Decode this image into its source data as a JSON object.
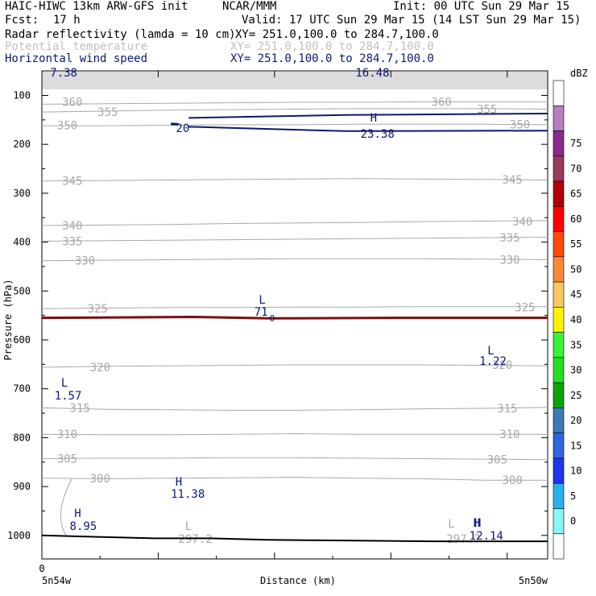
{
  "header": {
    "model": "HAIC-HIWC 13km ARW-GFS init",
    "org": "NCAR/MMM",
    "init": "Init: 00 UTC Sun 29 Mar 15",
    "fcst_label": "Fcst:",
    "fcst_value": "17 h",
    "valid": "Valid: 17 UTC Sun 29 Mar 15 (14 LST Sun 29 Mar 15)",
    "fields": [
      {
        "name": "Radar reflectivity (lamda = 10 cm)",
        "xy": "XY= 251.0,100.0 to 284.7,100.0",
        "color": "#000000"
      },
      {
        "name": "Potential temperature",
        "xy": "XY= 251.0,100.0 to 284.7,100.0",
        "color": "#c0c0c0"
      },
      {
        "name": "Horizontal wind speed",
        "xy": "XY= 251.0,100.0 to 284.7,100.0",
        "color": "#0a1a78"
      }
    ]
  },
  "colors": {
    "theta": "#a8a8a8",
    "wind": "#0a1a78",
    "wind_line": "#0c1a6e",
    "trop": "#7a0f0f",
    "terrain": "#000000",
    "axis": "#000000"
  },
  "chart_data": {
    "type": "cross-section",
    "ylabel": "Pressure (hPa)",
    "xlabel": "Distance (km)",
    "x_tick_labels": [
      "0"
    ],
    "x_end_labels": [
      "5n54w",
      "5n50w"
    ],
    "y_ticks": [
      100,
      200,
      300,
      400,
      500,
      600,
      700,
      800,
      900,
      1000
    ],
    "y_range": [
      50,
      1050
    ],
    "x_range": [
      0,
      1
    ],
    "theta_levels": [
      {
        "value": 300,
        "p": [
          883,
          884,
          883,
          882,
          881,
          883,
          884,
          887,
          887
        ]
      },
      {
        "value": 305,
        "p": [
          843,
          842,
          842,
          841,
          841,
          842,
          843,
          844,
          845
        ]
      },
      {
        "value": 310,
        "p": [
          793,
          794,
          794,
          793,
          792,
          793,
          793,
          793,
          793
        ]
      },
      {
        "value": 315,
        "p": [
          739,
          742,
          743,
          744,
          744,
          743,
          741,
          740,
          738
        ]
      },
      {
        "value": 320,
        "p": [
          656,
          654,
          653,
          652,
          651,
          651,
          651,
          652,
          653
        ]
      },
      {
        "value": 325,
        "p": [
          536,
          535,
          534,
          534,
          533,
          533,
          532,
          532,
          532
        ]
      },
      {
        "value": 330,
        "p": [
          438,
          437,
          436,
          435,
          434,
          434,
          434,
          435,
          436
        ]
      },
      {
        "value": 335,
        "p": [
          398,
          397,
          396,
          395,
          394,
          393,
          392,
          391,
          390
        ]
      },
      {
        "value": 340,
        "p": [
          366,
          365,
          364,
          362,
          361,
          360,
          358,
          357,
          356
        ]
      },
      {
        "value": 345,
        "p": [
          275,
          274,
          273,
          272,
          271,
          270,
          271,
          272,
          273
        ]
      },
      {
        "value": 350,
        "p": [
          162,
          162,
          161,
          160,
          160,
          159,
          159,
          159,
          160
        ]
      },
      {
        "value": 355,
        "p": [
          134,
          132,
          130,
          129,
          128,
          127,
          127,
          127,
          128
        ]
      },
      {
        "value": 360,
        "p": [
          118,
          117,
          116,
          115,
          114,
          114,
          113,
          113,
          113
        ]
      }
    ],
    "theta_labels": [
      "360",
      "355",
      "350",
      "345",
      "340",
      "335",
      "330",
      "325",
      "320",
      "315",
      "310",
      "305",
      "300",
      "297.2",
      "297.7"
    ],
    "wind_labels": [
      "7.38",
      "16.48",
      "20",
      "23.38",
      "71",
      "1.22",
      "1.57",
      "11.38",
      "8.95",
      "12.14"
    ],
    "extremum_marks": [
      "H",
      "L",
      "L",
      "L",
      "H",
      "H",
      "H",
      "L",
      "L",
      "H"
    ],
    "tropopause_p": 555,
    "surface_p": [
      1000,
      1003,
      1006,
      1006,
      1009,
      1010,
      1011,
      1012,
      1012,
      1012
    ],
    "colorbar": {
      "unit": "dBZ",
      "levels": [
        0,
        5,
        10,
        15,
        20,
        25,
        30,
        35,
        40,
        45,
        50,
        55,
        60,
        65,
        70,
        75
      ],
      "colors": [
        "#ffffff",
        "#8bf4f4",
        "#2bb1ea",
        "#1f34ee",
        "#2d67dd",
        "#3d7ab5",
        "#0ba30b",
        "#24de24",
        "#38f438",
        "#fff200",
        "#f7c860",
        "#f58a3b",
        "#ff4a0a",
        "#ff0000",
        "#b20000",
        "#9b3a5a",
        "#8a2a8a",
        "#b77fbf",
        "#ffffff"
      ]
    }
  }
}
